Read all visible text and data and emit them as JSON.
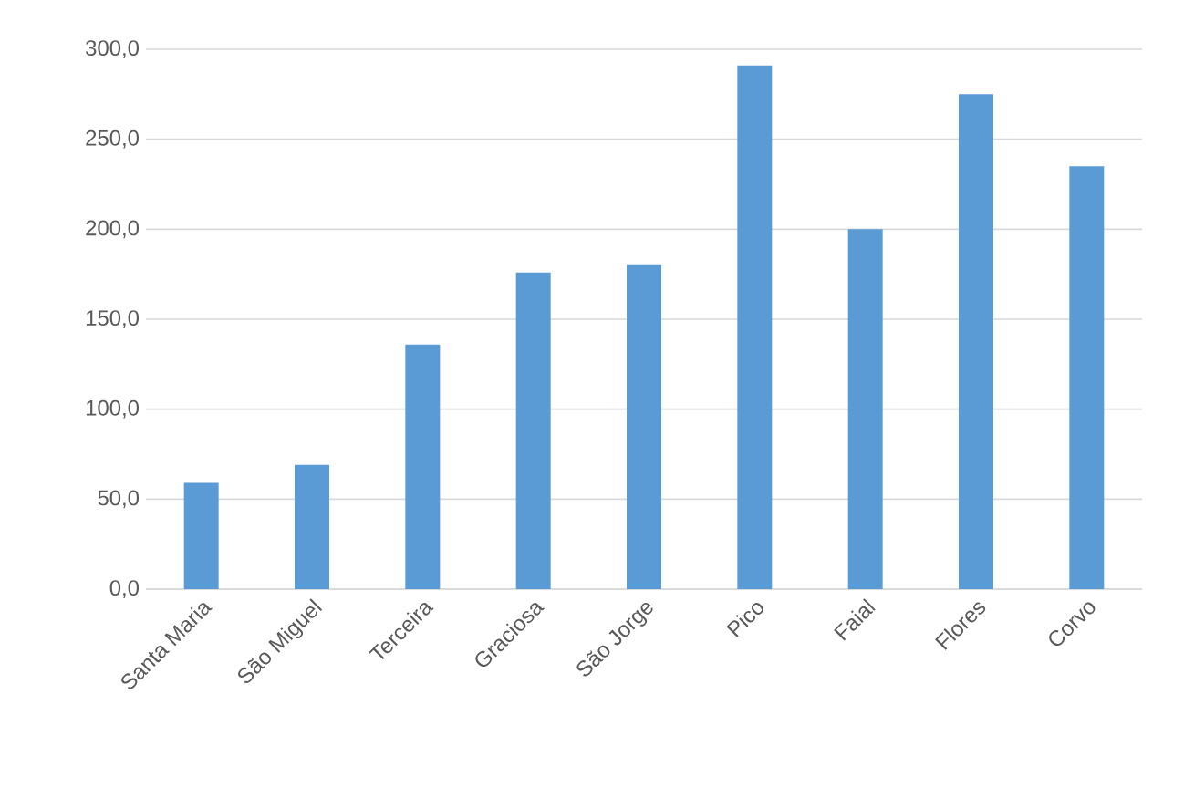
{
  "chart_data": {
    "type": "bar",
    "categories": [
      "Santa Maria",
      "São Miguel",
      "Terceira",
      "Graciosa",
      "São Jorge",
      "Pico",
      "Faial",
      "Flores",
      "Corvo"
    ],
    "values": [
      59,
      69,
      136,
      176,
      180,
      291,
      200,
      275,
      235
    ],
    "color": "#5b9bd5",
    "ylim": [
      0,
      300
    ],
    "yticks": [
      {
        "value": 0,
        "label": "0,0"
      },
      {
        "value": 50,
        "label": "50,0"
      },
      {
        "value": 100,
        "label": "100,0"
      },
      {
        "value": 150,
        "label": "150,0"
      },
      {
        "value": 200,
        "label": "200,0"
      },
      {
        "value": 250,
        "label": "250,0"
      },
      {
        "value": 300,
        "label": "300,0"
      }
    ],
    "grid": "y"
  }
}
